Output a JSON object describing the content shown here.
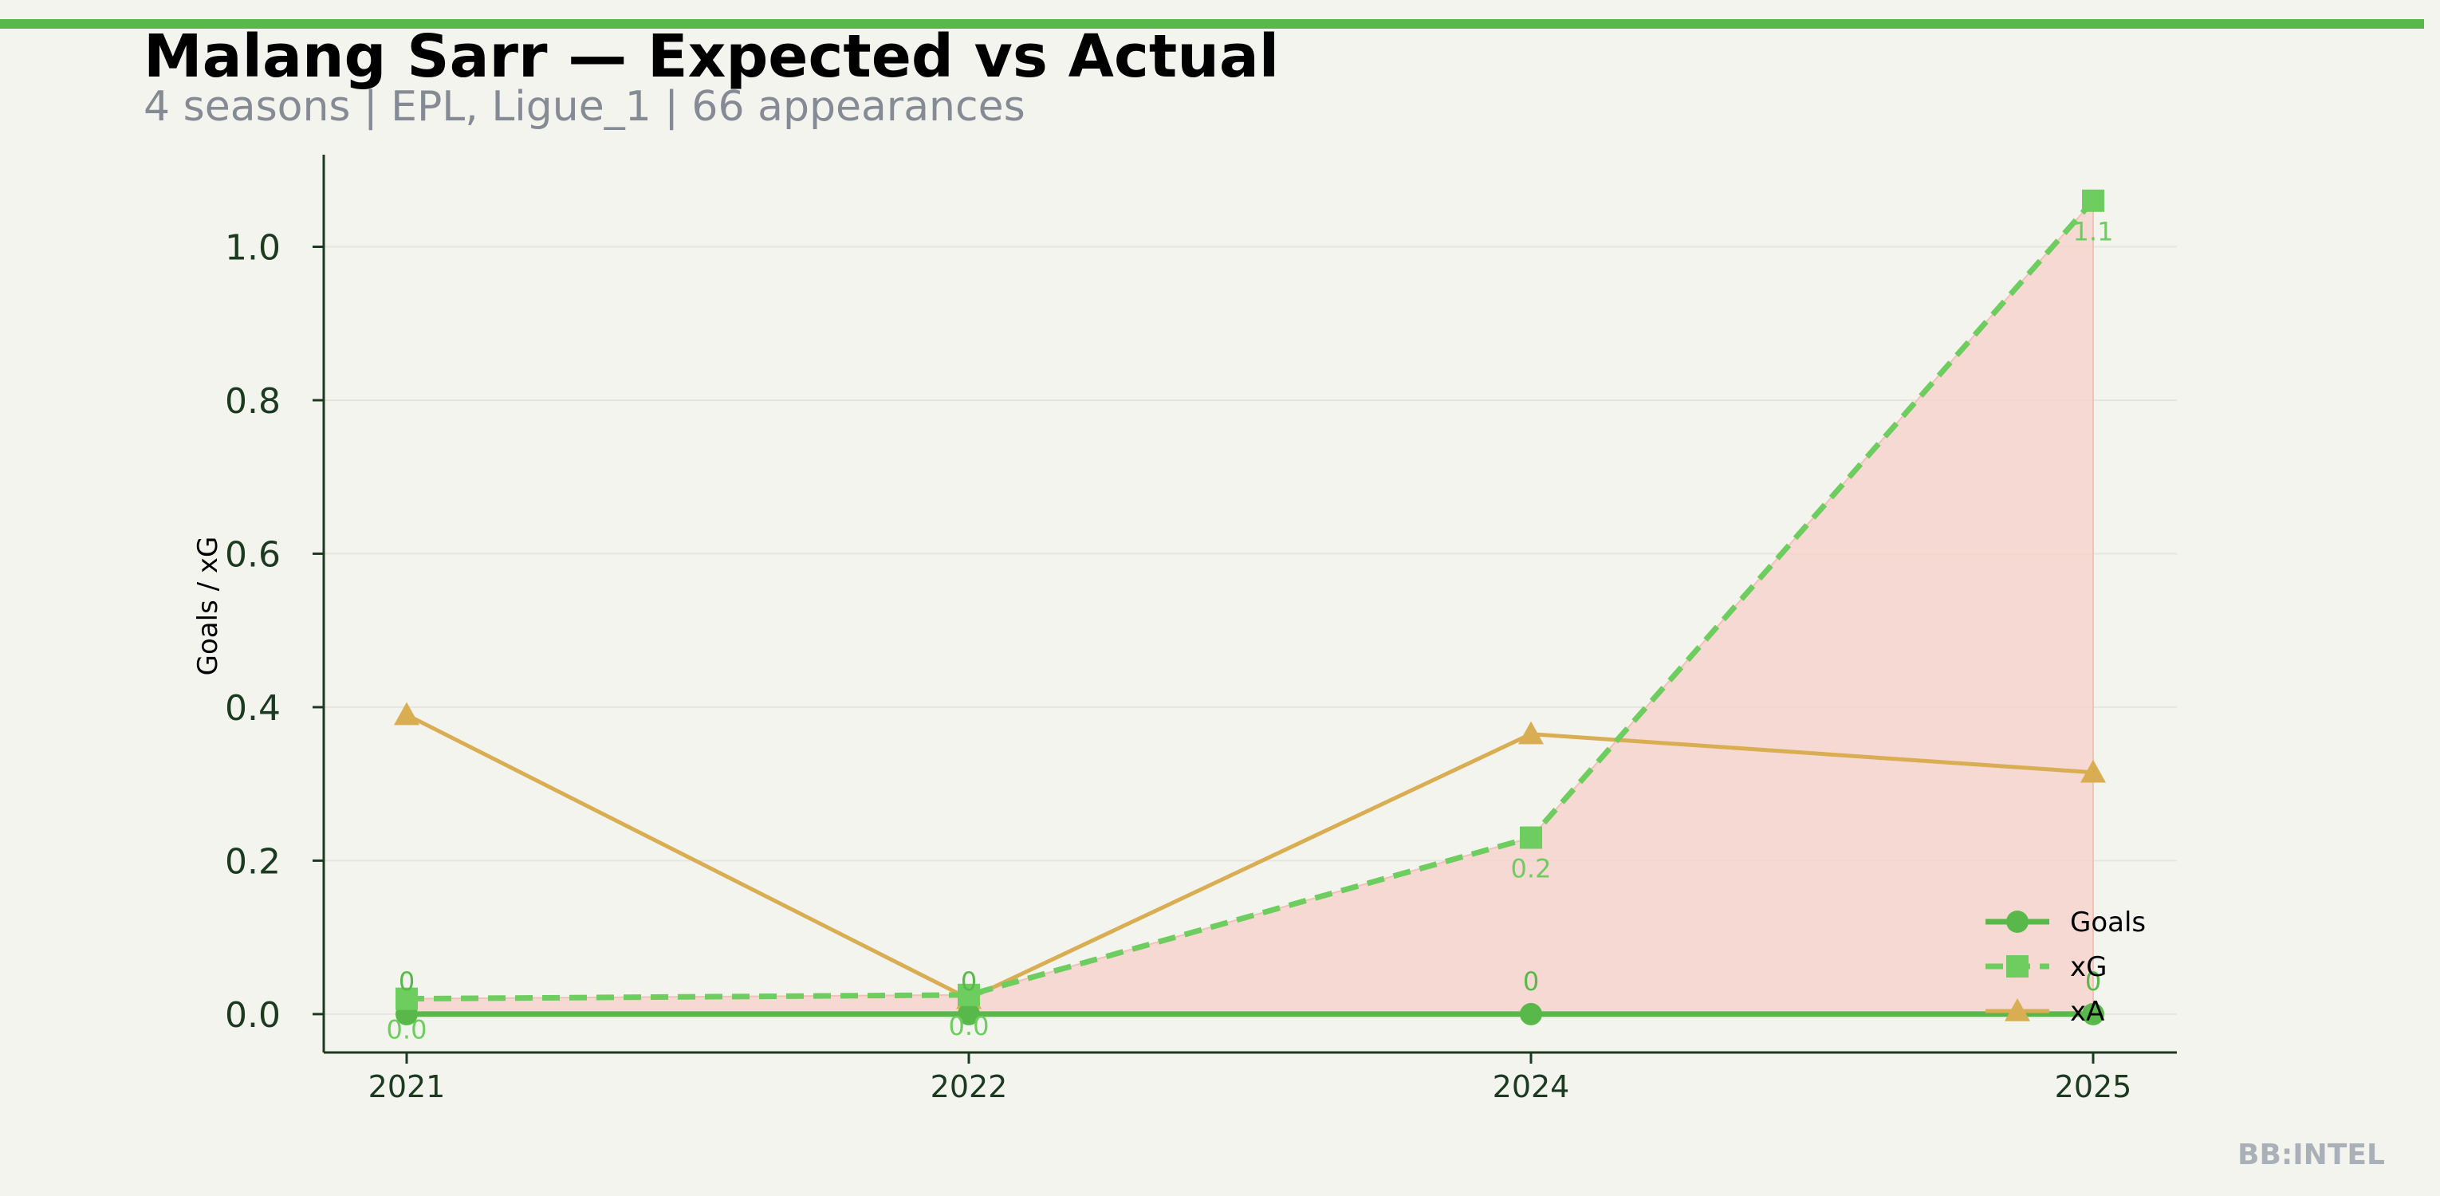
{
  "header": {
    "title": "Malang Sarr — Expected vs Actual",
    "subtitle": "4 seasons | EPL, Ligue_1 | 66 appearances"
  },
  "watermark": "BB:INTEL",
  "colors": {
    "accent_bar": "#58b94a",
    "goals": "#58b94a",
    "xg": "#6dcd5e",
    "xa": "#d9ad52",
    "gap_fill": "#f5d3cc",
    "axis": "#1b3a20",
    "background": "#f4f4ef"
  },
  "chart_data": {
    "type": "line",
    "categories": [
      "2021",
      "2022",
      "2024",
      "2025"
    ],
    "ylabel": "Goals / xG",
    "xlabel": "",
    "ylim": [
      -0.05,
      1.12
    ],
    "yticks": [
      "0.0",
      "0.2",
      "0.4",
      "0.6",
      "0.8",
      "1.0"
    ],
    "grid": true,
    "legend_position": "bottom-right",
    "series": [
      {
        "name": "Goals",
        "key": "goals",
        "marker": "circle",
        "style": "solid",
        "values": [
          0,
          0,
          0,
          0
        ],
        "labels": [
          "0",
          "0",
          "0",
          "0"
        ]
      },
      {
        "name": "xG",
        "key": "xg",
        "marker": "square",
        "style": "dashed",
        "values": [
          0.02,
          0.025,
          0.23,
          1.06
        ],
        "labels": [
          "0.0",
          "0.0",
          "0.2",
          "1.1"
        ]
      },
      {
        "name": "xA",
        "key": "xa",
        "marker": "triangle",
        "style": "solid",
        "values": [
          0.39,
          0.02,
          0.365,
          0.315
        ]
      }
    ],
    "shaded_gap": "xG above Goals"
  }
}
